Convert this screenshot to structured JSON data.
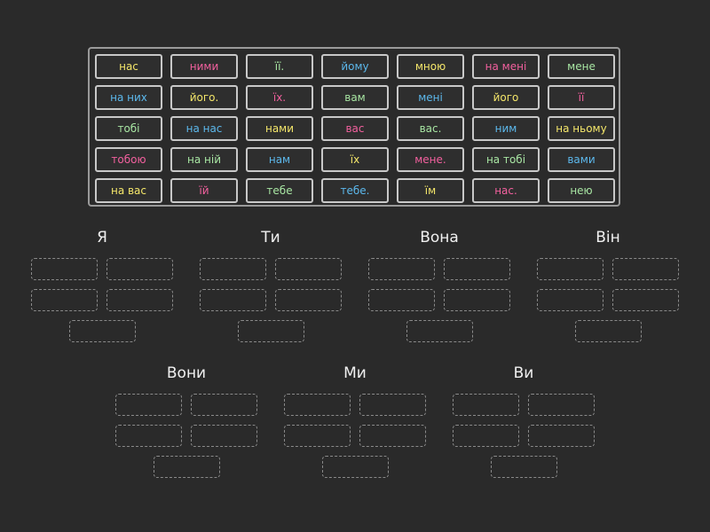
{
  "tiles": [
    [
      {
        "text": "нас",
        "color": "#f4e66a"
      },
      {
        "text": "ними",
        "color": "#f2609e"
      },
      {
        "text": "її.",
        "color": "#a8e6a3"
      },
      {
        "text": "йому",
        "color": "#5cb8ec"
      },
      {
        "text": "мною",
        "color": "#f4e66a"
      },
      {
        "text": "на мені",
        "color": "#f2609e"
      },
      {
        "text": "мене",
        "color": "#a8e6a3"
      }
    ],
    [
      {
        "text": "на них",
        "color": "#5cb8ec"
      },
      {
        "text": "його.",
        "color": "#f4e66a"
      },
      {
        "text": "їх.",
        "color": "#f2609e"
      },
      {
        "text": "вам",
        "color": "#a8e6a3"
      },
      {
        "text": "мені",
        "color": "#5cb8ec"
      },
      {
        "text": "його",
        "color": "#f4e66a"
      },
      {
        "text": "її",
        "color": "#f2609e"
      }
    ],
    [
      {
        "text": "тобі",
        "color": "#a8e6a3"
      },
      {
        "text": "на нас",
        "color": "#5cb8ec"
      },
      {
        "text": "нами",
        "color": "#f4e66a"
      },
      {
        "text": "вас",
        "color": "#f2609e"
      },
      {
        "text": "вас.",
        "color": "#a8e6a3"
      },
      {
        "text": "ним",
        "color": "#5cb8ec"
      },
      {
        "text": "на ньому",
        "color": "#f4e66a"
      }
    ],
    [
      {
        "text": "тобою",
        "color": "#f2609e"
      },
      {
        "text": "на ній",
        "color": "#a8e6a3"
      },
      {
        "text": "нам",
        "color": "#5cb8ec"
      },
      {
        "text": "їх",
        "color": "#f4e66a"
      },
      {
        "text": "мене.",
        "color": "#f2609e"
      },
      {
        "text": "на тобі",
        "color": "#a8e6a3"
      },
      {
        "text": "вами",
        "color": "#5cb8ec"
      }
    ],
    [
      {
        "text": "на вас",
        "color": "#f4e66a"
      },
      {
        "text": "їй",
        "color": "#f2609e"
      },
      {
        "text": "тебе",
        "color": "#a8e6a3"
      },
      {
        "text": "тебе.",
        "color": "#5cb8ec"
      },
      {
        "text": "їм",
        "color": "#f4e66a"
      },
      {
        "text": "нас.",
        "color": "#f2609e"
      },
      {
        "text": "нею",
        "color": "#a8e6a3"
      }
    ]
  ],
  "groups": [
    {
      "label": "Я"
    },
    {
      "label": "Ти"
    },
    {
      "label": "Вона"
    },
    {
      "label": "Він"
    },
    {
      "label": "Вони"
    },
    {
      "label": "Ми"
    },
    {
      "label": "Ви"
    }
  ]
}
